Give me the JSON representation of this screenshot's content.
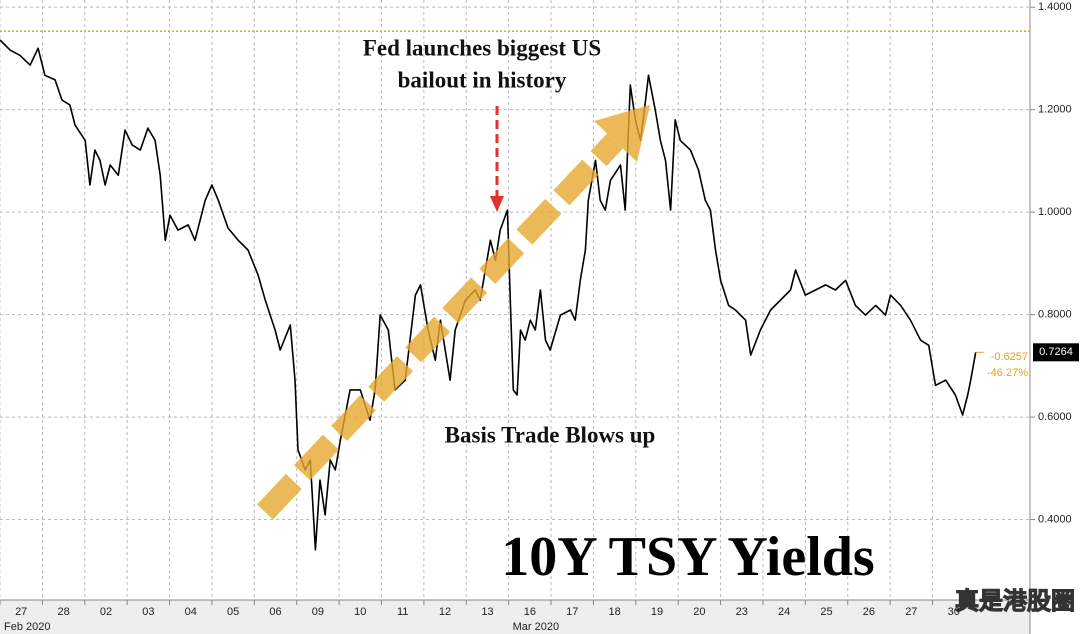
{
  "chart_data": {
    "type": "line",
    "title": "10Y TSY Yields",
    "annotations": [
      {
        "lines": [
          "Fed launches biggest US",
          "bailout in history"
        ]
      },
      {
        "lines": [
          "Basis Trade Blows up"
        ]
      }
    ],
    "xticks": [
      {
        "value": 0,
        "label": "27"
      },
      {
        "value": 1,
        "label": "28"
      },
      {
        "value": 2,
        "label": "02"
      },
      {
        "value": 3,
        "label": "03"
      },
      {
        "value": 4,
        "label": "04"
      },
      {
        "value": 5,
        "label": "05"
      },
      {
        "value": 6,
        "label": "06"
      },
      {
        "value": 7,
        "label": "09"
      },
      {
        "value": 8,
        "label": "10"
      },
      {
        "value": 9,
        "label": "11"
      },
      {
        "value": 10,
        "label": "12"
      },
      {
        "value": 11,
        "label": "13"
      },
      {
        "value": 12,
        "label": "16"
      },
      {
        "value": 13,
        "label": "17"
      },
      {
        "value": 14,
        "label": "18"
      },
      {
        "value": 15,
        "label": "19"
      },
      {
        "value": 16,
        "label": "20"
      },
      {
        "value": 17,
        "label": "23"
      },
      {
        "value": 18,
        "label": "24"
      },
      {
        "value": 19,
        "label": "25"
      },
      {
        "value": 20,
        "label": "26"
      },
      {
        "value": 21,
        "label": "27"
      },
      {
        "value": 22,
        "label": "30"
      }
    ],
    "month_labels": [
      {
        "value": 0,
        "label": "Feb 2020"
      },
      {
        "value": 12,
        "label": "Mar 2020"
      }
    ],
    "xlim": [
      0,
      24.3
    ],
    "ylim": [
      0.243,
      1.414
    ],
    "yticks": [
      {
        "value": 0.4,
        "label": "0.4000"
      },
      {
        "value": 0.6,
        "label": "0.6000"
      },
      {
        "value": 0.8,
        "label": "0.8000"
      },
      {
        "value": 1.0,
        "label": "1.0000"
      },
      {
        "value": 1.2,
        "label": "1.2000"
      },
      {
        "value": 1.4,
        "label": "1.4000"
      }
    ],
    "grid": true,
    "reference_line": {
      "value": 1.353,
      "color": "#f0a020"
    },
    "series": [
      {
        "name": "10Y TSY Yields",
        "color": "#000000",
        "end_label": "0.7264",
        "change_labels": [
          "-0.6257",
          "-46.27%"
        ],
        "change_color": "#e8a020",
        "x": [
          0,
          0.24,
          0.47,
          0.71,
          0.9,
          1.06,
          1.3,
          1.46,
          1.65,
          1.77,
          2.01,
          2.12,
          2.24,
          2.36,
          2.48,
          2.6,
          2.79,
          2.95,
          3.12,
          3.31,
          3.49,
          3.66,
          3.78,
          3.9,
          4.01,
          4.2,
          4.44,
          4.6,
          4.84,
          5.0,
          5.15,
          5.38,
          5.62,
          5.85,
          6.09,
          6.26,
          6.49,
          6.61,
          6.85,
          6.96,
          7.03,
          7.2,
          7.32,
          7.44,
          7.55,
          7.67,
          7.79,
          7.91,
          8.03,
          8.26,
          8.5,
          8.73,
          8.85,
          8.97,
          9.16,
          9.32,
          9.56,
          9.8,
          9.92,
          10.1,
          10.27,
          10.39,
          10.62,
          10.74,
          10.98,
          11.21,
          11.33,
          11.45,
          11.57,
          11.69,
          11.8,
          11.97,
          12.04,
          12.11,
          12.2,
          12.28,
          12.39,
          12.51,
          12.63,
          12.75,
          12.87,
          12.98,
          13.22,
          13.46,
          13.57,
          13.69,
          13.81,
          13.88,
          14.05,
          14.16,
          14.28,
          14.4,
          14.64,
          14.75,
          14.87,
          14.99,
          15.11,
          15.23,
          15.3,
          15.46,
          15.58,
          15.7,
          15.82,
          15.93,
          16.05,
          16.29,
          16.48,
          16.64,
          16.76,
          16.88,
          17.0,
          17.19,
          17.35,
          17.59,
          17.71,
          17.94,
          18.18,
          18.41,
          18.65,
          18.77,
          19.0,
          19.24,
          19.48,
          19.71,
          19.95,
          20.18,
          20.42,
          20.66,
          20.89,
          21.01,
          21.25,
          21.48,
          21.72,
          21.91,
          22.07,
          22.31,
          22.54,
          22.71,
          22.83,
          22.9,
          23.02
        ],
        "values": [
          1.336,
          1.316,
          1.306,
          1.287,
          1.32,
          1.267,
          1.258,
          1.219,
          1.209,
          1.17,
          1.14,
          1.053,
          1.121,
          1.101,
          1.053,
          1.092,
          1.072,
          1.16,
          1.131,
          1.121,
          1.164,
          1.14,
          1.072,
          0.945,
          0.994,
          0.965,
          0.975,
          0.945,
          1.023,
          1.053,
          1.023,
          0.969,
          0.945,
          0.926,
          0.877,
          0.828,
          0.77,
          0.731,
          0.78,
          0.672,
          0.536,
          0.497,
          0.516,
          0.341,
          0.477,
          0.409,
          0.516,
          0.497,
          0.555,
          0.653,
          0.653,
          0.594,
          0.653,
          0.799,
          0.77,
          0.653,
          0.672,
          0.838,
          0.858,
          0.77,
          0.711,
          0.789,
          0.672,
          0.77,
          0.828,
          0.848,
          0.828,
          0.887,
          0.945,
          0.906,
          0.965,
          1.004,
          0.828,
          0.653,
          0.643,
          0.77,
          0.75,
          0.789,
          0.77,
          0.848,
          0.75,
          0.731,
          0.799,
          0.809,
          0.789,
          0.867,
          0.926,
          1.023,
          1.101,
          1.023,
          1.004,
          1.062,
          1.092,
          1.004,
          1.248,
          1.18,
          1.14,
          1.219,
          1.267,
          1.199,
          1.14,
          1.101,
          1.004,
          1.18,
          1.14,
          1.121,
          1.082,
          1.023,
          1.004,
          0.926,
          0.867,
          0.818,
          0.809,
          0.789,
          0.721,
          0.77,
          0.809,
          0.828,
          0.848,
          0.887,
          0.838,
          0.848,
          0.858,
          0.848,
          0.867,
          0.818,
          0.799,
          0.818,
          0.799,
          0.838,
          0.818,
          0.789,
          0.75,
          0.74,
          0.662,
          0.672,
          0.643,
          0.604,
          0.643,
          0.672,
          0.7264
        ]
      }
    ],
    "watermark": "真是港股圈"
  }
}
